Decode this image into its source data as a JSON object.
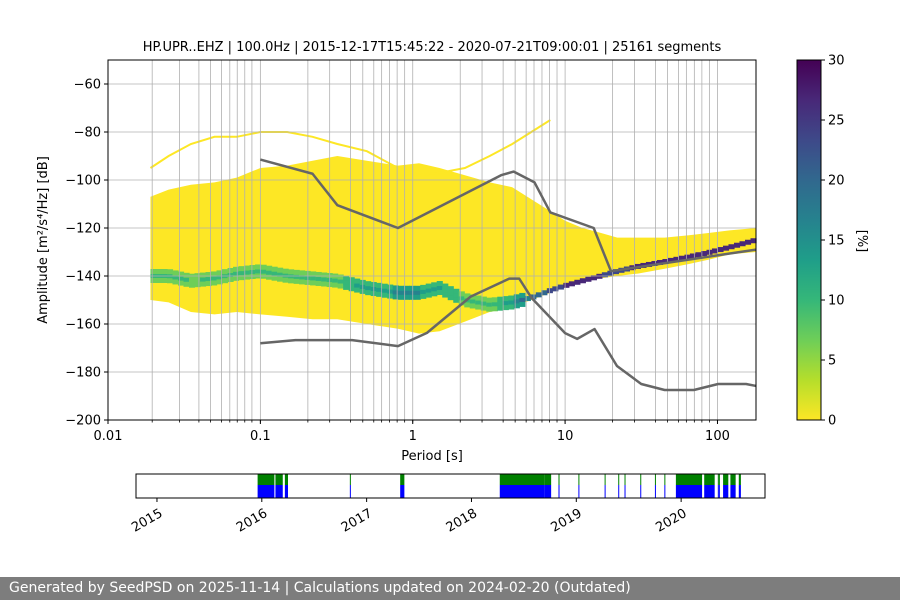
{
  "chart_data": {
    "type": "heatmap",
    "title": "HP.UPR..EHZ | 100.0Hz | 2015-12-17T15:45:22 - 2020-07-21T09:00:01 | 25161 segments",
    "xlabel": "Period [s]",
    "ylabel": "Amplitude [m²/s⁴/Hz] [dB]",
    "xscale": "log",
    "xlim": [
      0.01,
      179
    ],
    "ylim": [
      -200,
      -50
    ],
    "x_ticks": [
      {
        "value": 0.01,
        "label": "0.01"
      },
      {
        "value": 0.1,
        "label": "0.1"
      },
      {
        "value": 1,
        "label": "1"
      },
      {
        "value": 10,
        "label": "10"
      },
      {
        "value": 100,
        "label": "100"
      }
    ],
    "y_ticks": [
      {
        "value": -60,
        "label": "−60"
      },
      {
        "value": -80,
        "label": "−80"
      },
      {
        "value": -100,
        "label": "−100"
      },
      {
        "value": -120,
        "label": "−120"
      },
      {
        "value": -140,
        "label": "−140"
      },
      {
        "value": -160,
        "label": "−160"
      },
      {
        "value": -180,
        "label": "−180"
      },
      {
        "value": -200,
        "label": "−200"
      }
    ],
    "grid_periods": [
      0.0195,
      0.0295,
      0.0395,
      0.047,
      0.0555,
      0.063,
      0.0705,
      0.079,
      0.088,
      0.1,
      0.205,
      0.285,
      0.39,
      0.47,
      0.555,
      0.625,
      0.705,
      0.79,
      0.885,
      1.0,
      2.05,
      2.85,
      3.92,
      4.7,
      5.55,
      6.25,
      7.05,
      7.9,
      8.85,
      10.0,
      20.5,
      28.5,
      39.2,
      47.0,
      55.5,
      62.5,
      70.5,
      79.0,
      88.5,
      100
    ],
    "colorbar": {
      "label": "[%]",
      "range": [
        0,
        30
      ],
      "ticks": [
        {
          "value": 0,
          "label": "0"
        },
        {
          "value": 5,
          "label": "5"
        },
        {
          "value": 10,
          "label": "10"
        },
        {
          "value": 15,
          "label": "15"
        },
        {
          "value": 20,
          "label": "20"
        },
        {
          "value": 25,
          "label": "25"
        },
        {
          "value": 30,
          "label": "30"
        }
      ],
      "colors": [
        "#fde725",
        "#b5de2b",
        "#6ece58",
        "#35b779",
        "#1f9e89",
        "#26828e",
        "#31688e",
        "#3e4989",
        "#482878",
        "#440154"
      ]
    },
    "density_bands": {
      "periods": [
        0.019,
        0.025,
        0.035,
        0.05,
        0.07,
        0.1,
        0.15,
        0.22,
        0.32,
        0.5,
        0.8,
        1.1,
        1.5,
        2.2,
        3.2,
        4.5,
        6,
        8,
        10,
        13,
        17,
        22,
        30,
        45,
        65,
        90,
        120,
        179
      ],
      "upper_db": [
        -107,
        -104,
        -102,
        -101,
        -99,
        -95,
        -94,
        -92,
        -90,
        -92,
        -94,
        -93,
        -95,
        -98,
        -101,
        -103,
        -108,
        -113,
        -117,
        -120,
        -122,
        -124,
        -124,
        -124,
        -123,
        -122,
        -121,
        -120
      ],
      "lower_db": [
        -150,
        -151,
        -155,
        -156,
        -155,
        -156,
        -157,
        -158,
        -158,
        -160,
        -162,
        -164,
        -163,
        -159,
        -155,
        -153,
        -150,
        -147,
        -144,
        -142,
        -141,
        -140,
        -139,
        -137,
        -135,
        -133,
        -131,
        -130
      ],
      "mode_db": [
        -140,
        -140,
        -142,
        -141,
        -139,
        -138,
        -140,
        -141,
        -142,
        -145,
        -147,
        -147,
        -145,
        -150,
        -152,
        -151,
        -149,
        -146,
        -144,
        -142,
        -140,
        -138,
        -136,
        -134,
        -132,
        -130,
        -128,
        -125
      ],
      "mode_percent": [
        8,
        8,
        6,
        7,
        7,
        8,
        8,
        8,
        8,
        10,
        12,
        12,
        9,
        8,
        7,
        10,
        18,
        22,
        25,
        26,
        25,
        24,
        26,
        27,
        28,
        28,
        28,
        28
      ],
      "sparse_upper_db": [
        -95,
        -90,
        -85,
        -82,
        -82,
        -80,
        -80,
        -82,
        -85,
        -88,
        -95,
        -98,
        -97,
        -95,
        -90,
        -85,
        -80,
        -75
      ]
    },
    "noise_models": [
      {
        "name": "high-noise-model",
        "periods": [
          0.1,
          0.22,
          0.32,
          0.8,
          3.8,
          4.6,
          6.3,
          8,
          15.4,
          20,
          179
        ],
        "values": [
          -91.5,
          -97.4,
          -110.5,
          -120,
          -98,
          -96.5,
          -101,
          -113.5,
          -120,
          -138,
          -129
        ]
      },
      {
        "name": "low-noise-model",
        "periods": [
          0.1,
          0.17,
          0.4,
          0.8,
          1.24,
          2.4,
          4.3,
          5,
          6,
          10,
          12,
          15.6,
          21.9,
          31.6,
          45,
          70,
          101,
          154,
          179
        ],
        "values": [
          -168,
          -166.7,
          -166.7,
          -169.2,
          -163.7,
          -148.6,
          -141.1,
          -141.1,
          -149,
          -163.8,
          -166.2,
          -162.1,
          -177.5,
          -185,
          -187.5,
          -187.5,
          -185,
          -185,
          -185.8
        ]
      }
    ],
    "availability": {
      "year_labels": [
        "2015",
        "2016",
        "2017",
        "2018",
        "2019",
        "2020"
      ],
      "year_fracs": [
        0.0,
        0.0,
        0.0,
        0.0,
        0.0,
        0.0
      ],
      "years": [
        2015,
        2016,
        2017,
        2018,
        2019,
        2020
      ],
      "range_years": [
        2014.8,
        2020.8
      ],
      "green_color": "#008000",
      "blue_color": "#0000ff",
      "blocks": [
        {
          "start": 2015.96,
          "end": 2016.12
        },
        {
          "start": 2016.13,
          "end": 2016.2
        },
        {
          "start": 2016.22,
          "end": 2016.25
        },
        {
          "start": 2017.32,
          "end": 2017.36
        },
        {
          "start": 2018.27,
          "end": 2018.7
        },
        {
          "start": 2018.7,
          "end": 2018.76
        },
        {
          "start": 2018.83,
          "end": 2018.84
        },
        {
          "start": 2019.95,
          "end": 2020.2
        },
        {
          "start": 2020.22,
          "end": 2020.32
        },
        {
          "start": 2020.4,
          "end": 2020.45
        },
        {
          "start": 2020.47,
          "end": 2020.52
        },
        {
          "start": 2020.55,
          "end": 2020.57
        }
      ],
      "ticks": [
        2016.84,
        2019.02,
        2019.27,
        2019.4,
        2019.46,
        2019.61,
        2019.75,
        2019.84,
        2020.35,
        2020.36
      ]
    }
  },
  "footer": {
    "text": "Generated by SeedPSD on 2025-11-14 | Calculations updated on 2024-02-20 (Outdated)"
  }
}
